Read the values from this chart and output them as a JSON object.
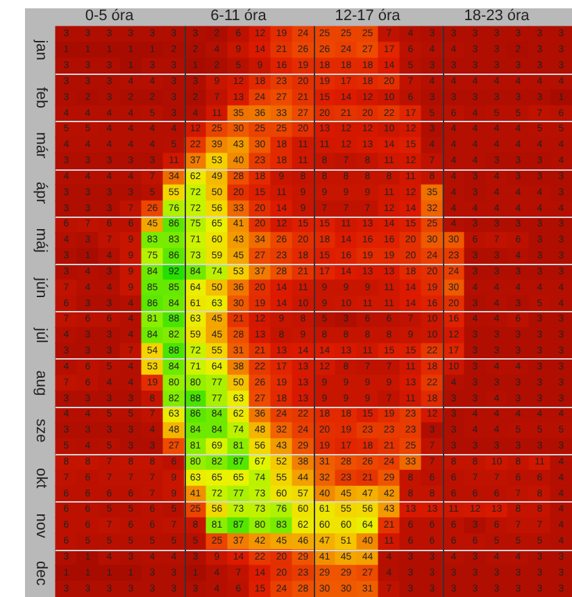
{
  "chart_data": {
    "type": "heatmap",
    "categories": [
      null,
      null,
      "0-5 óra",
      null,
      null,
      null,
      null,
      null,
      "6-11 óra",
      null,
      null,
      null,
      null,
      null,
      "12-17 óra",
      null,
      null,
      null,
      null,
      null,
      "18-23 óra",
      null,
      null,
      null
    ],
    "y_categories": [
      null,
      "jan",
      null,
      null,
      "feb",
      null,
      null,
      "már",
      null,
      null,
      "ápr",
      null,
      null,
      "máj",
      null,
      null,
      "jún",
      null,
      null,
      "júl",
      null,
      null,
      "aug",
      null,
      null,
      "sze",
      null,
      null,
      "okt",
      null,
      null,
      "nov",
      null,
      null,
      "dec",
      null
    ],
    "cells": [
      [
        3,
        3,
        3,
        3,
        3,
        3,
        3,
        2,
        6,
        12,
        19,
        24,
        25,
        25,
        25,
        7,
        4,
        3,
        3,
        3,
        3,
        3,
        3,
        3
      ],
      [
        1,
        1,
        1,
        1,
        1,
        2,
        2,
        4,
        9,
        14,
        21,
        26,
        26,
        24,
        27,
        17,
        6,
        4,
        4,
        3,
        3,
        2,
        3,
        3
      ],
      [
        3,
        3,
        3,
        1,
        3,
        3,
        1,
        2,
        5,
        9,
        16,
        19,
        18,
        18,
        18,
        14,
        5,
        3,
        3,
        3,
        3,
        3,
        3,
        3
      ],
      [
        3,
        3,
        3,
        4,
        4,
        3,
        3,
        9,
        12,
        18,
        23,
        20,
        19,
        17,
        18,
        20,
        7,
        4,
        4,
        4,
        4,
        4,
        4,
        4
      ],
      [
        3,
        2,
        3,
        2,
        2,
        3,
        2,
        7,
        13,
        24,
        27,
        21,
        15,
        14,
        12,
        10,
        6,
        3,
        3,
        3,
        3,
        3,
        3,
        1
      ],
      [
        4,
        4,
        4,
        4,
        5,
        3,
        4,
        11,
        35,
        36,
        33,
        27,
        20,
        21,
        20,
        22,
        17,
        5,
        6,
        4,
        5,
        5,
        7,
        6
      ],
      [
        5,
        5,
        4,
        4,
        4,
        4,
        12,
        25,
        30,
        25,
        25,
        20,
        13,
        12,
        12,
        10,
        12,
        3,
        4,
        4,
        4,
        4,
        5,
        5
      ],
      [
        4,
        4,
        4,
        4,
        4,
        5,
        22,
        39,
        43,
        30,
        18,
        11,
        11,
        12,
        13,
        14,
        15,
        4,
        4,
        4,
        4,
        4,
        4,
        4
      ],
      [
        3,
        3,
        3,
        3,
        3,
        11,
        37,
        53,
        40,
        23,
        18,
        11,
        8,
        7,
        8,
        11,
        12,
        7,
        4,
        4,
        3,
        3,
        3,
        4
      ],
      [
        4,
        4,
        4,
        4,
        7,
        34,
        62,
        49,
        28,
        18,
        9,
        8,
        8,
        8,
        8,
        8,
        11,
        8,
        4,
        3,
        4,
        3,
        3,
        3
      ],
      [
        3,
        3,
        3,
        3,
        5,
        55,
        72,
        50,
        20,
        15,
        11,
        9,
        9,
        9,
        9,
        11,
        12,
        35,
        4,
        3,
        4,
        4,
        4,
        3
      ],
      [
        3,
        3,
        3,
        7,
        26,
        76,
        72,
        56,
        33,
        20,
        14,
        9,
        7,
        7,
        7,
        12,
        14,
        32,
        4,
        4,
        4,
        4,
        4,
        4
      ],
      [
        6,
        7,
        6,
        6,
        45,
        86,
        75,
        65,
        41,
        20,
        12,
        15,
        15,
        11,
        13,
        14,
        15,
        25,
        4,
        3,
        3,
        3,
        3,
        3
      ],
      [
        4,
        3,
        7,
        9,
        83,
        83,
        71,
        60,
        43,
        34,
        26,
        20,
        18,
        14,
        16,
        16,
        20,
        30,
        30,
        6,
        7,
        6,
        3,
        3
      ],
      [
        3,
        1,
        4,
        9,
        75,
        86,
        73,
        59,
        45,
        27,
        23,
        18,
        15,
        16,
        19,
        19,
        20,
        24,
        23,
        3,
        3,
        4,
        3,
        3
      ],
      [
        3,
        4,
        3,
        9,
        84,
        92,
        84,
        74,
        53,
        37,
        28,
        21,
        17,
        14,
        13,
        13,
        18,
        20,
        24,
        3,
        3,
        3,
        3,
        3
      ],
      [
        7,
        4,
        4,
        9,
        85,
        85,
        64,
        50,
        36,
        20,
        14,
        11,
        9,
        9,
        9,
        11,
        14,
        19,
        30,
        4,
        4,
        4,
        4,
        4
      ],
      [
        6,
        3,
        3,
        4,
        86,
        84,
        61,
        63,
        30,
        19,
        14,
        10,
        9,
        10,
        11,
        11,
        14,
        16,
        20,
        3,
        4,
        3,
        5,
        4
      ],
      [
        7,
        6,
        6,
        4,
        81,
        88,
        63,
        45,
        21,
        12,
        9,
        8,
        5,
        3,
        6,
        6,
        7,
        10,
        16,
        4,
        4,
        6,
        3,
        3
      ],
      [
        4,
        3,
        3,
        4,
        84,
        82,
        59,
        45,
        28,
        13,
        8,
        9,
        8,
        8,
        8,
        8,
        9,
        10,
        12,
        3,
        3,
        3,
        3,
        3
      ],
      [
        3,
        3,
        3,
        7,
        54,
        88,
        72,
        55,
        31,
        21,
        13,
        14,
        14,
        13,
        11,
        15,
        15,
        22,
        17,
        3,
        3,
        3,
        3,
        3
      ],
      [
        4,
        6,
        5,
        4,
        53,
        84,
        71,
        64,
        38,
        22,
        17,
        13,
        12,
        8,
        7,
        7,
        11,
        18,
        10,
        3,
        4,
        4,
        3,
        3
      ],
      [
        7,
        6,
        4,
        4,
        19,
        80,
        80,
        77,
        50,
        26,
        19,
        13,
        9,
        9,
        9,
        9,
        13,
        22,
        4,
        3,
        3,
        3,
        3,
        3
      ],
      [
        3,
        3,
        3,
        3,
        8,
        82,
        88,
        77,
        63,
        27,
        18,
        13,
        9,
        9,
        9,
        7,
        11,
        18,
        3,
        3,
        4,
        3,
        3,
        3
      ],
      [
        4,
        4,
        5,
        5,
        7,
        63,
        86,
        84,
        62,
        36,
        24,
        22,
        18,
        18,
        15,
        19,
        23,
        12,
        3,
        4,
        4,
        4,
        4,
        4
      ],
      [
        3,
        3,
        3,
        3,
        4,
        48,
        84,
        84,
        74,
        48,
        32,
        24,
        20,
        19,
        23,
        23,
        23,
        3,
        3,
        4,
        4,
        5,
        5,
        5
      ],
      [
        5,
        4,
        5,
        3,
        3,
        27,
        81,
        69,
        81,
        56,
        43,
        29,
        19,
        17,
        18,
        21,
        25,
        7,
        3,
        3,
        3,
        3,
        3,
        3
      ],
      [
        8,
        8,
        7,
        8,
        8,
        6,
        80,
        82,
        87,
        67,
        52,
        38,
        31,
        28,
        26,
        24,
        33,
        7,
        8,
        8,
        10,
        8,
        11,
        4
      ],
      [
        7,
        6,
        7,
        7,
        7,
        9,
        63,
        65,
        65,
        74,
        55,
        44,
        32,
        23,
        21,
        29,
        8,
        6,
        6,
        7,
        7,
        6,
        6,
        4
      ],
      [
        6,
        6,
        6,
        6,
        7,
        9,
        41,
        72,
        77,
        73,
        60,
        57,
        40,
        45,
        47,
        42,
        8,
        8,
        6,
        6,
        6,
        7,
        8,
        4
      ],
      [
        6,
        6,
        5,
        5,
        6,
        5,
        25,
        56,
        73,
        73,
        76,
        60,
        61,
        55,
        56,
        43,
        13,
        13,
        11,
        12,
        13,
        8,
        8,
        4
      ],
      [
        6,
        6,
        7,
        6,
        6,
        7,
        8,
        81,
        87,
        80,
        83,
        62,
        60,
        60,
        64,
        21,
        6,
        6,
        6,
        3,
        6,
        7,
        7,
        4
      ],
      [
        6,
        5,
        5,
        5,
        5,
        5,
        5,
        25,
        37,
        42,
        45,
        46,
        47,
        51,
        40,
        11,
        6,
        6,
        6,
        6,
        5,
        5,
        5,
        4
      ],
      [
        3,
        1,
        4,
        3,
        4,
        4,
        3,
        9,
        14,
        22,
        20,
        29,
        41,
        45,
        44,
        4,
        3,
        3,
        4,
        3,
        4,
        4,
        3,
        3
      ],
      [
        1,
        1,
        1,
        1,
        3,
        3,
        1,
        4,
        7,
        14,
        20,
        23,
        29,
        29,
        27,
        4,
        3,
        3,
        3,
        3,
        3,
        3,
        3,
        3
      ],
      [
        3,
        3,
        3,
        3,
        3,
        3,
        3,
        4,
        6,
        15,
        24,
        28,
        30,
        30,
        31,
        7,
        3,
        3,
        3,
        3,
        3,
        3,
        3,
        3
      ]
    ],
    "data_labels": true,
    "grid": true
  }
}
